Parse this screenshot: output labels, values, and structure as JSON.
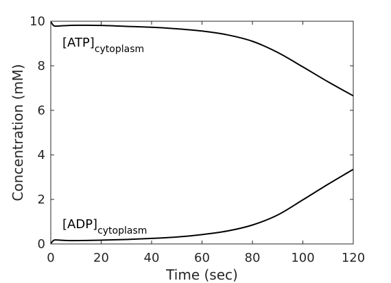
{
  "chart_data": {
    "type": "line",
    "xlabel": "Time (sec)",
    "ylabel": "Concentration (mM)",
    "xlim": [
      0,
      120
    ],
    "ylim": [
      0,
      10
    ],
    "xticks": [
      0,
      20,
      40,
      60,
      80,
      100,
      120
    ],
    "yticks": [
      0,
      2,
      4,
      6,
      8,
      10
    ],
    "grid": false,
    "line_color": "#000000",
    "axis_color": "#262626",
    "series": [
      {
        "annotation": {
          "main": "[ATP]",
          "sub": "cytoplasm"
        },
        "x": [
          0,
          1,
          2,
          5,
          10,
          20,
          30,
          40,
          50,
          60,
          70,
          80,
          90,
          100,
          110,
          120
        ],
        "y": [
          9.98,
          9.82,
          9.78,
          9.8,
          9.82,
          9.81,
          9.77,
          9.73,
          9.66,
          9.56,
          9.39,
          9.1,
          8.6,
          7.95,
          7.28,
          6.65
        ]
      },
      {
        "annotation": {
          "main": "[ADP]",
          "sub": "cytoplasm"
        },
        "x": [
          0,
          1,
          2,
          5,
          10,
          20,
          30,
          40,
          50,
          60,
          70,
          80,
          90,
          100,
          110,
          120
        ],
        "y": [
          0.02,
          0.15,
          0.18,
          0.16,
          0.15,
          0.17,
          0.2,
          0.25,
          0.31,
          0.42,
          0.58,
          0.85,
          1.3,
          1.98,
          2.68,
          3.35
        ]
      }
    ]
  }
}
